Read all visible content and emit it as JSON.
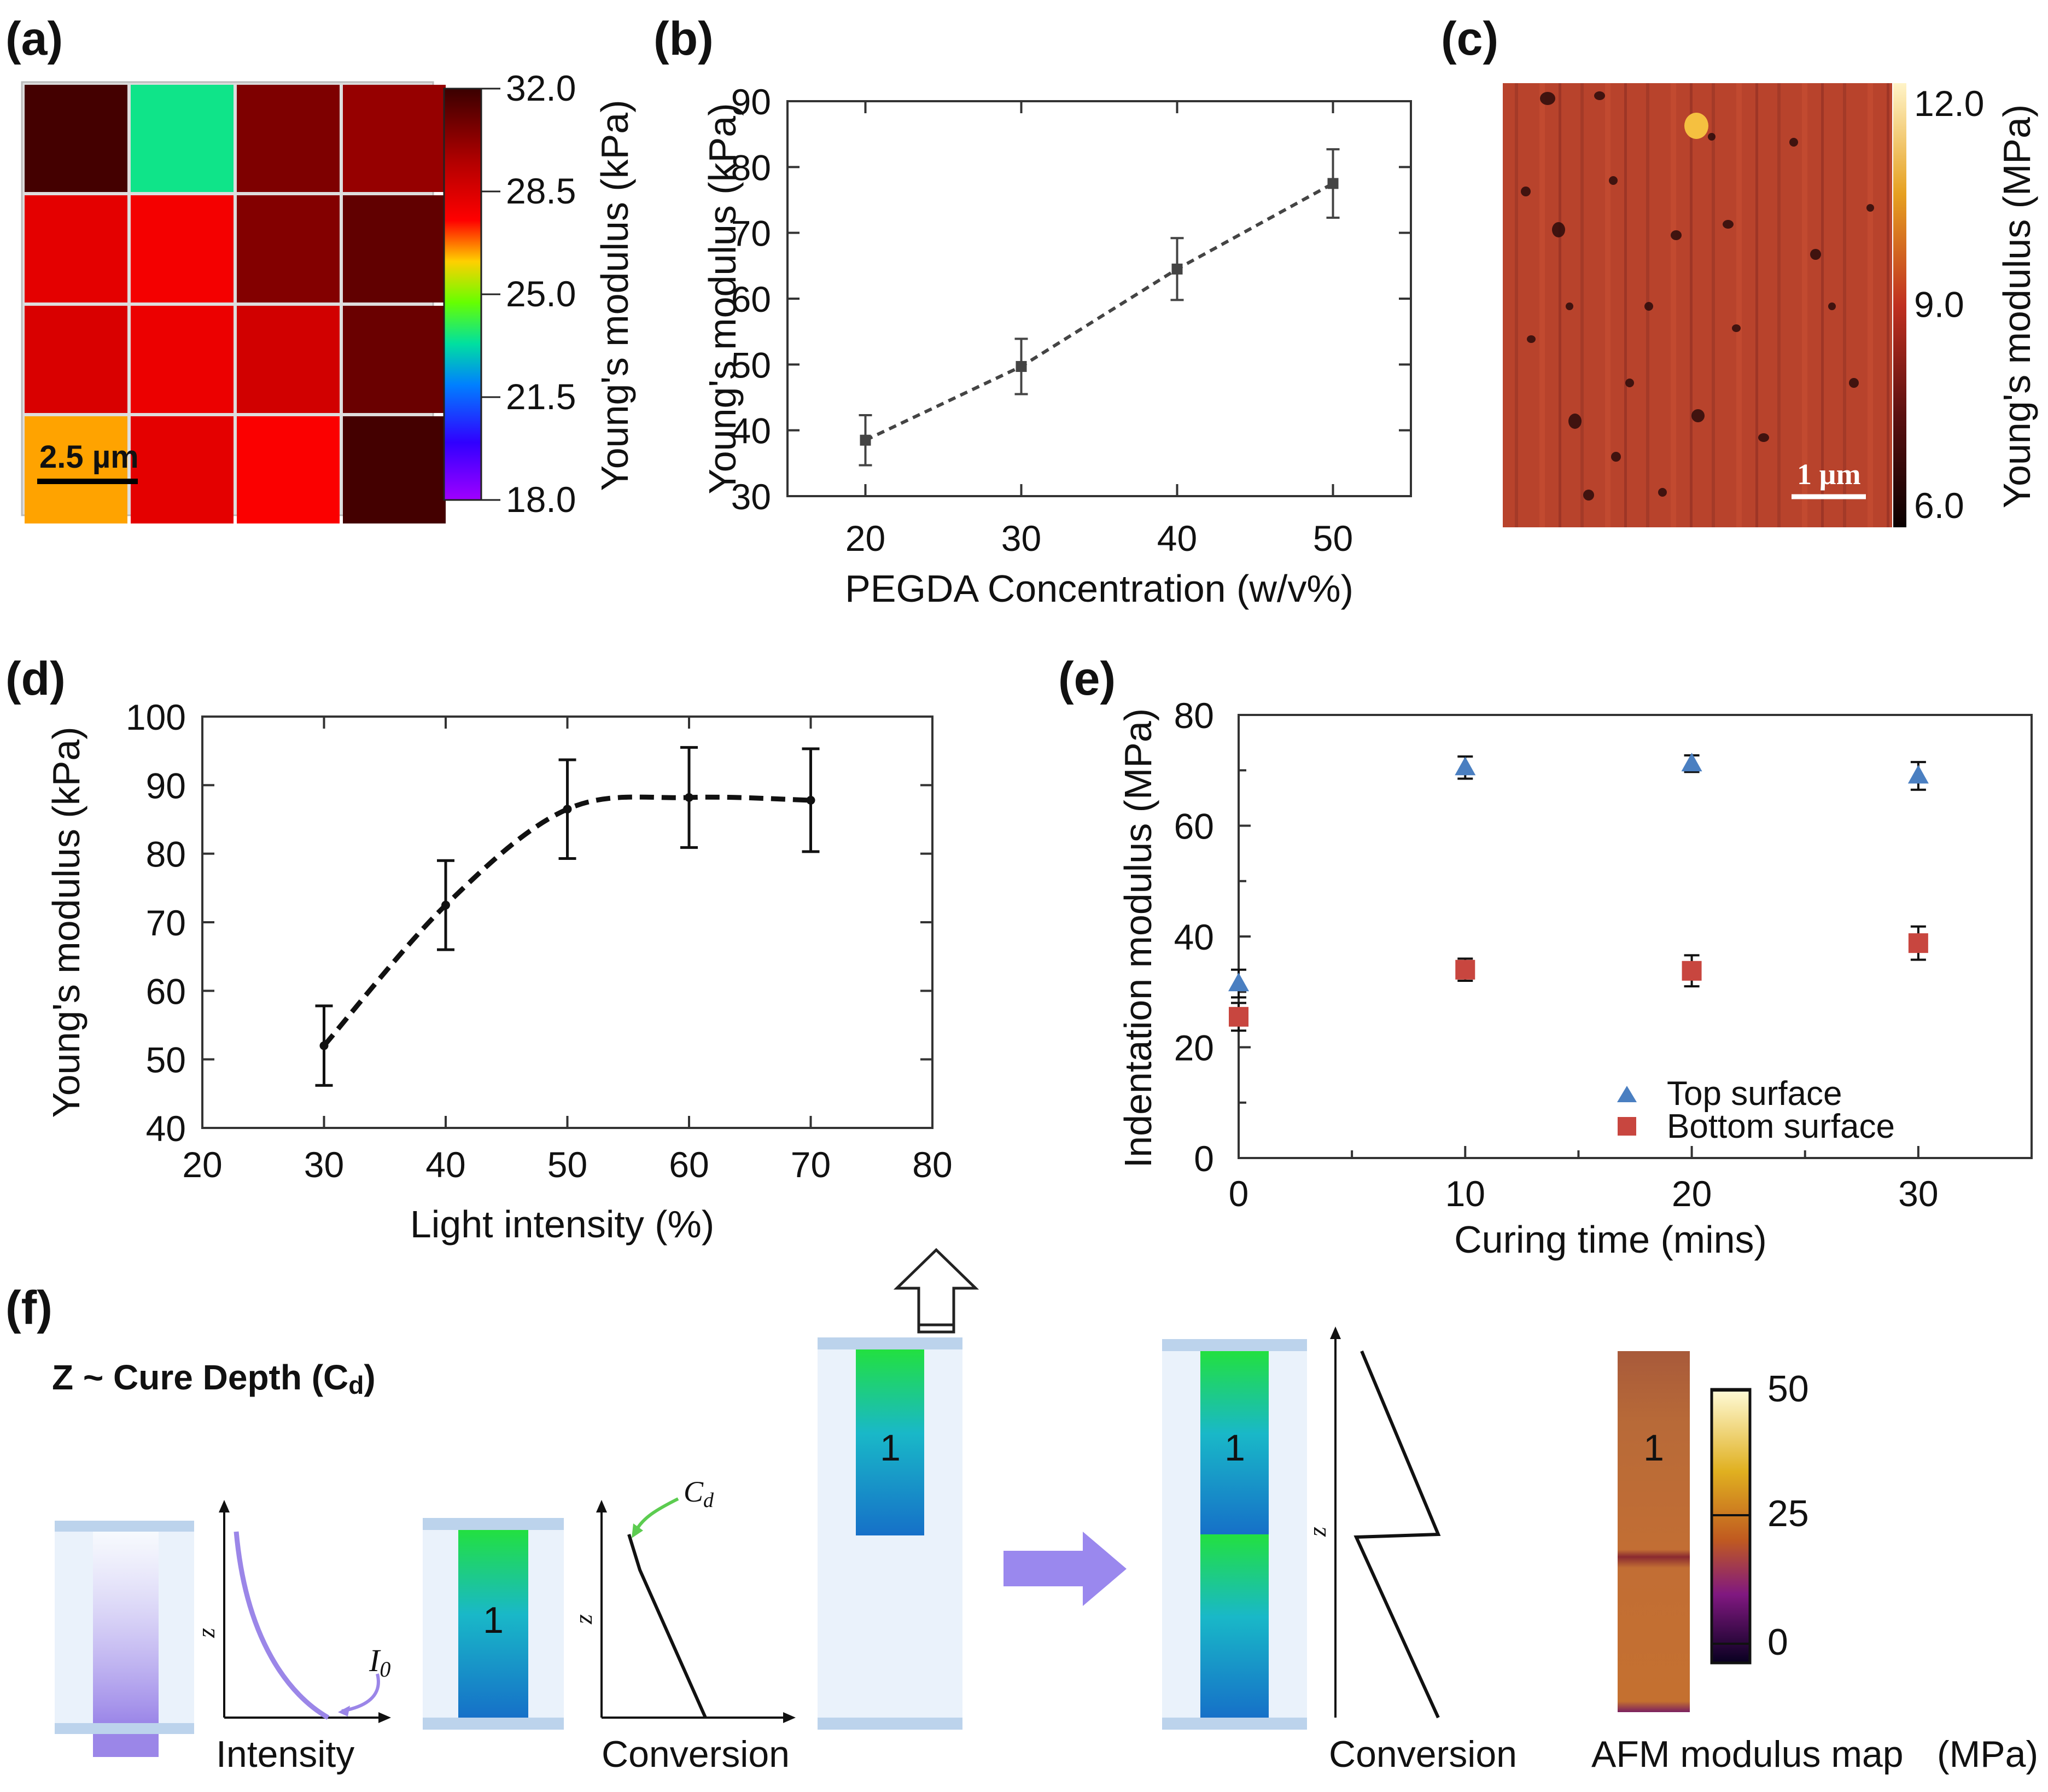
{
  "colors": {
    "series_b": "#444444",
    "series_d": "#111111",
    "top_surface": "#4a7fc1",
    "bottom_surface": "#c8463f",
    "chamber": "#eaf2fb",
    "plate": "#bcd3ec",
    "uv_purple": "#9b86e8",
    "process_arrow": "#9a88ee"
  },
  "chart_data": [
    {
      "id": "a",
      "panel_label": "(a)",
      "type": "heatmap",
      "rows": 4,
      "cols": 4,
      "values": [
        [
          31.8,
          23.5,
          30.6,
          30.1
        ],
        [
          28.2,
          27.8,
          30.5,
          31.2
        ],
        [
          28.5,
          28.0,
          28.7,
          31.0
        ],
        [
          26.4,
          28.2,
          27.6,
          31.8
        ]
      ],
      "colorbar": {
        "label": "Young's modulus (kPa)",
        "ticks": [
          "32.0",
          "28.5",
          "25.0",
          "21.5",
          "18.0"
        ],
        "range": [
          18.0,
          32.0
        ]
      },
      "scalebar": "2.5 µm"
    },
    {
      "id": "b",
      "panel_label": "(b)",
      "type": "line",
      "xlabel": "PEGDA Concentration (w/v%)",
      "ylabel": "Young's modulus  (kPa)",
      "x": [
        20,
        30,
        40,
        50
      ],
      "y": [
        38.5,
        49.7,
        64.5,
        77.5
      ],
      "yerr": [
        3.8,
        4.2,
        4.7,
        5.2
      ],
      "xlim": [
        15,
        55
      ],
      "ylim": [
        30,
        90
      ],
      "xticks": [
        "20",
        "30",
        "40",
        "50"
      ],
      "yticks": [
        "30",
        "40",
        "50",
        "60",
        "70",
        "80",
        "90"
      ]
    },
    {
      "id": "c",
      "panel_label": "(c)",
      "type": "heatmap",
      "description_values": "AFM modulus image",
      "colorbar": {
        "label": "Young's modulus (MPa)",
        "ticks": [
          "12.0",
          "9.0",
          "6.0"
        ],
        "range": [
          6.0,
          12.0
        ]
      },
      "scalebar": "1 µm"
    },
    {
      "id": "d",
      "panel_label": "(d)",
      "type": "line",
      "xlabel": "Light intensity (%)",
      "ylabel": "Young's modulus (kPa)",
      "x": [
        30,
        40,
        50,
        60,
        70
      ],
      "y": [
        52,
        72.5,
        86.5,
        88.2,
        87.8
      ],
      "yerr": [
        5.8,
        6.5,
        7.2,
        7.3,
        7.5
      ],
      "xlim": [
        20,
        80
      ],
      "ylim": [
        40,
        100
      ],
      "xticks": [
        "20",
        "30",
        "40",
        "50",
        "60",
        "70",
        "80"
      ],
      "yticks": [
        "40",
        "50",
        "60",
        "70",
        "80",
        "90",
        "100"
      ]
    },
    {
      "id": "e",
      "panel_label": "(e)",
      "type": "scatter",
      "xlabel": "Curing time (mins)",
      "ylabel": "Indentation modulus (MPa)",
      "xlim": [
        0,
        35
      ],
      "ylim": [
        0,
        80
      ],
      "xticks": [
        "0",
        "10",
        "20",
        "30"
      ],
      "yticks": [
        "0",
        "20",
        "40",
        "60",
        "80"
      ],
      "series": [
        {
          "name": "Top surface",
          "x": [
            0,
            10,
            20,
            30
          ],
          "y": [
            31.5,
            70.5,
            71.2,
            69.0
          ],
          "yerr": [
            2.5,
            2.0,
            1.5,
            2.5
          ]
        },
        {
          "name": "Bottom surface",
          "x": [
            0,
            10,
            20,
            30
          ],
          "y": [
            25.5,
            34.0,
            33.8,
            38.8
          ],
          "yerr": [
            2.5,
            2.0,
            2.8,
            3.0
          ]
        }
      ]
    }
  ],
  "panel_f": {
    "panel_label": "(f)",
    "title_main": "Z ~ Cure Depth (C",
    "title_sub": "d",
    "title_end": ")",
    "layer_label": "1",
    "axis_z": "z",
    "label_intensity": "Intensity",
    "label_conversion": "Conversion",
    "label_i0_main": "I",
    "label_i0_sub": "0",
    "label_cd_main": "C",
    "label_cd_sub": "d",
    "label_afm": "AFM modulus map",
    "label_afm_unit": "(MPa)",
    "afm_ticks": [
      "50",
      "25",
      "0"
    ]
  }
}
